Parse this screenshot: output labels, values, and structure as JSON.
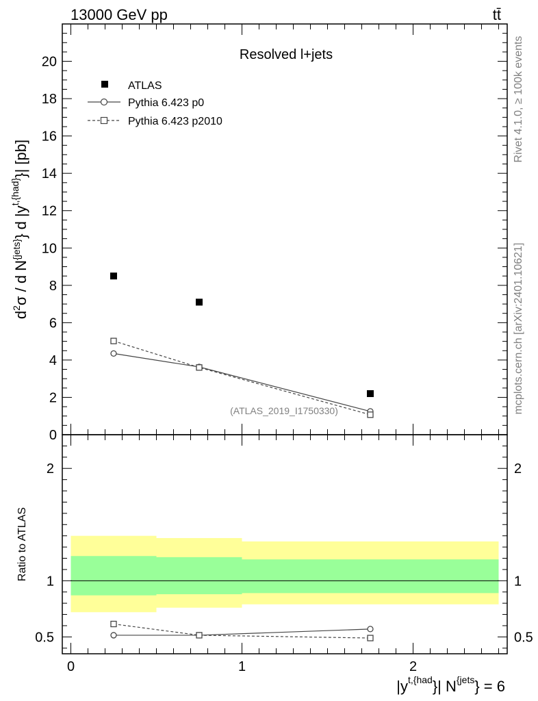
{
  "header": {
    "energy_label": "13000 GeV pp",
    "process_label": "tt̄"
  },
  "side_labels": {
    "rivet": "Rivet 4.1.0, ≥ 100k events",
    "mcplots": "mcplots.cern.ch [arXiv:2401.10621]"
  },
  "chart_data": [
    {
      "type": "scatter",
      "panel": "main",
      "title": "Resolved l+jets",
      "ylabel": "d²σ / d N{jets} d |y t,{had}| [pb]",
      "analysis_label": "(ATLAS_2019_I1750330)",
      "xlim": [
        -0.05,
        2.55
      ],
      "ylim": [
        0,
        22
      ],
      "yticks": [
        0,
        2,
        4,
        6,
        8,
        10,
        12,
        14,
        16,
        18,
        20
      ],
      "legend_position": "top-left",
      "series": [
        {
          "name": "ATLAS",
          "marker": "filled-square",
          "x": [
            0.25,
            0.75,
            1.75
          ],
          "y": [
            8.5,
            7.1,
            2.2
          ],
          "yerr": [
            0.1,
            0.1,
            0.05
          ]
        },
        {
          "name": "Pythia 6.423 p0",
          "marker": "open-circle",
          "linestyle": "solid",
          "x": [
            0.25,
            0.75,
            1.75
          ],
          "y": [
            4.35,
            3.63,
            1.25
          ],
          "yerr": [
            0.15,
            0.12,
            0.05
          ]
        },
        {
          "name": "Pythia 6.423 p2010",
          "marker": "open-square",
          "linestyle": "dashed",
          "x": [
            0.25,
            0.75,
            1.75
          ],
          "y": [
            5.02,
            3.6,
            1.07
          ],
          "yerr": [
            0.15,
            0.12,
            0.05
          ]
        }
      ]
    },
    {
      "type": "scatter",
      "panel": "ratio",
      "ylabel": "Ratio to ATLAS",
      "xlabel": "|y t,{had}| N{jets} = 6",
      "xlim": [
        -0.05,
        2.55
      ],
      "ylim": [
        0.35,
        2.3
      ],
      "xticks": [
        0,
        1,
        2
      ],
      "yticks": [
        0.5,
        1,
        2
      ],
      "reference_line": 1,
      "bands": {
        "bins": [
          [
            0,
            0.5
          ],
          [
            0.5,
            1.0
          ],
          [
            1.0,
            2.5
          ]
        ],
        "yellow_low": [
          0.72,
          0.76,
          0.79
        ],
        "yellow_high": [
          1.4,
          1.38,
          1.35
        ],
        "green_low": [
          0.87,
          0.88,
          0.89
        ],
        "green_high": [
          1.22,
          1.21,
          1.19
        ]
      },
      "series": [
        {
          "name": "Pythia 6.423 p0",
          "marker": "open-circle",
          "linestyle": "solid",
          "x": [
            0.25,
            0.75,
            1.75
          ],
          "y": [
            0.515,
            0.515,
            0.57
          ],
          "yerr": [
            0.02,
            0.02,
            0.02
          ]
        },
        {
          "name": "Pythia 6.423 p2010",
          "marker": "open-square",
          "linestyle": "dashed",
          "x": [
            0.25,
            0.75,
            1.75
          ],
          "y": [
            0.615,
            0.515,
            0.49
          ],
          "yerr": [
            0.02,
            0.02,
            0.02
          ]
        }
      ]
    }
  ]
}
